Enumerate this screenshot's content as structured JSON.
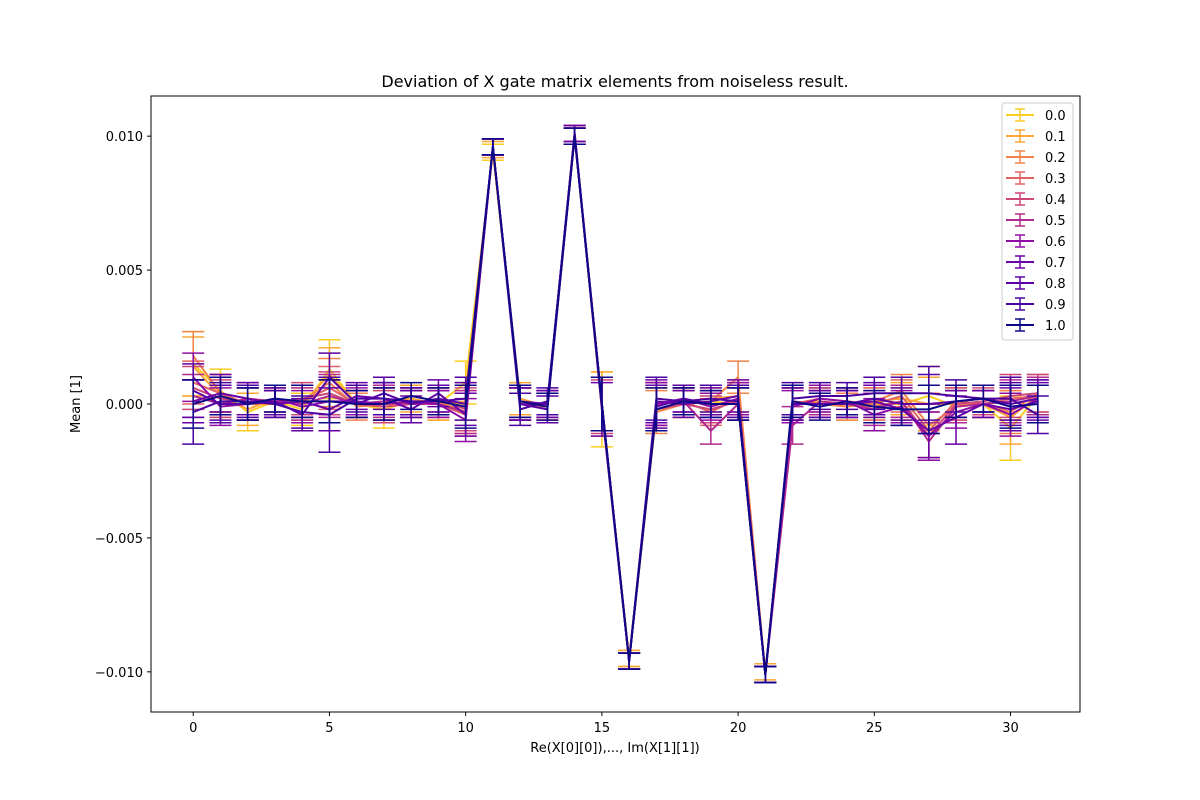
{
  "chart_data": {
    "type": "line",
    "title": "Deviation of X gate matrix elements from noiseless result.",
    "xlabel": "Re(X[0][0]),..., Im(X[1][1])",
    "ylabel": "Mean [1]",
    "xlim": [
      -1.55,
      32.55
    ],
    "ylim": [
      -0.0115,
      0.0115
    ],
    "xticks": [
      0,
      5,
      10,
      15,
      20,
      25,
      30
    ],
    "xtick_labels": [
      "0",
      "5",
      "10",
      "15",
      "20",
      "25",
      "30"
    ],
    "yticks": [
      -0.01,
      -0.005,
      0.0,
      0.005,
      0.01
    ],
    "ytick_labels": [
      "−0.010",
      "−0.005",
      "0.000",
      "0.005",
      "0.010"
    ],
    "grid": false,
    "legend_position": "top-right",
    "error_bars": true,
    "x": [
      0,
      1,
      2,
      3,
      4,
      5,
      6,
      7,
      8,
      9,
      10,
      11,
      12,
      13,
      14,
      15,
      16,
      17,
      18,
      19,
      20,
      21,
      22,
      23,
      24,
      25,
      26,
      27,
      28,
      29,
      30,
      31
    ],
    "series": [
      {
        "name": "0.0",
        "color": "#fcce25",
        "values": [
          0.0015,
          0.0005,
          -0.0003,
          0.0001,
          -0.0002,
          0.0013,
          0.0,
          -0.0002,
          0.0001,
          0.0,
          0.0008,
          0.0094,
          0.0001,
          -0.0001,
          0.0101,
          -0.0002,
          -0.0095,
          -0.0002,
          0.0,
          0.0001,
          0.0,
          -0.0101,
          0.0,
          0.0001,
          -0.0001,
          0.0,
          0.0,
          0.0003,
          -0.0001,
          0.0,
          -0.0009,
          0.0003
        ],
        "errors": [
          0.0012,
          0.0008,
          0.0007,
          0.0005,
          0.0006,
          0.0011,
          0.0004,
          0.0007,
          0.0005,
          0.0006,
          0.0008,
          0.0003,
          0.0006,
          0.0005,
          0.0003,
          0.0014,
          0.0003,
          0.0008,
          0.0005,
          0.0005,
          0.0006,
          0.0003,
          0.0006,
          0.0005,
          0.0005,
          0.0006,
          0.0006,
          0.0011,
          0.0006,
          0.0005,
          0.0012,
          0.0007
        ]
      },
      {
        "name": "0.1",
        "color": "#fca636",
        "values": [
          0.0014,
          0.0003,
          -0.0002,
          0.0002,
          0.0,
          0.0011,
          0.0,
          0.0001,
          0.0002,
          0.0,
          0.0001,
          0.0095,
          0.0002,
          -0.0001,
          0.01,
          0.0,
          -0.0095,
          0.0,
          0.0001,
          0.0002,
          0.0003,
          -0.01,
          0.0,
          0.0001,
          0.0,
          0.0001,
          0.0002,
          0.0,
          0.0,
          0.0,
          -0.0005,
          0.0003
        ],
        "errors": [
          0.0011,
          0.0008,
          0.0006,
          0.0005,
          0.0006,
          0.001,
          0.0005,
          0.0006,
          0.0005,
          0.0006,
          0.0007,
          0.0003,
          0.0006,
          0.0005,
          0.0003,
          0.0012,
          0.0003,
          0.0008,
          0.0005,
          0.0005,
          0.0006,
          0.0003,
          0.0006,
          0.0005,
          0.0005,
          0.0006,
          0.0006,
          0.001,
          0.0006,
          0.0005,
          0.001,
          0.0007
        ]
      },
      {
        "name": "0.2",
        "color": "#f2844b",
        "values": [
          0.0018,
          0.0004,
          0.0,
          0.0,
          0.0001,
          0.0008,
          -0.0001,
          0.0,
          0.0,
          0.0001,
          -0.0003,
          0.0096,
          0.0,
          -0.0001,
          0.01,
          0.0,
          -0.0096,
          -0.0003,
          0.0,
          0.0001,
          0.001,
          -0.0101,
          0.0,
          0.0,
          -0.0001,
          0.0001,
          0.0005,
          -0.0008,
          -0.0001,
          0.0,
          -0.0003,
          0.0004
        ],
        "errors": [
          0.0009,
          0.0007,
          0.0006,
          0.0005,
          0.0006,
          0.0009,
          0.0005,
          0.0006,
          0.0005,
          0.0005,
          0.0008,
          0.0003,
          0.0006,
          0.0005,
          0.0003,
          0.001,
          0.0003,
          0.0008,
          0.0005,
          0.0005,
          0.0006,
          0.0003,
          0.0006,
          0.0005,
          0.0005,
          0.0006,
          0.0006,
          0.0012,
          0.0006,
          0.0005,
          0.0008,
          0.0007
        ]
      },
      {
        "name": "0.3",
        "color": "#e16462",
        "values": [
          0.0008,
          0.0004,
          0.0,
          0.0001,
          0.0001,
          0.0006,
          0.0,
          0.0,
          0.0001,
          0.0,
          -0.0004,
          0.0096,
          0.0,
          -0.0001,
          0.01,
          0.0,
          -0.0096,
          0.0,
          0.0001,
          -0.0003,
          0.0002,
          -0.0101,
          0.0,
          0.0002,
          0.0001,
          0.0,
          0.0003,
          -0.001,
          0.0001,
          0.0,
          0.0002,
          0.0003
        ],
        "errors": [
          0.0008,
          0.0007,
          0.0006,
          0.0005,
          0.0006,
          0.0008,
          0.0005,
          0.0006,
          0.0005,
          0.0005,
          0.0008,
          0.0003,
          0.0006,
          0.0005,
          0.0003,
          0.001,
          0.0003,
          0.0008,
          0.0005,
          0.0005,
          0.0006,
          0.0003,
          0.0006,
          0.0005,
          0.0005,
          0.0006,
          0.0006,
          0.001,
          0.0006,
          0.0005,
          0.0008,
          0.0007
        ]
      },
      {
        "name": "0.4",
        "color": "#cc4778",
        "values": [
          0.0006,
          0.0002,
          0.0001,
          0.0,
          0.0002,
          0.0004,
          0.0,
          -0.0001,
          0.0,
          0.0002,
          -0.0002,
          0.0096,
          0.0,
          0.0,
          0.01,
          -0.0001,
          -0.0096,
          -0.0002,
          0.0,
          -0.0002,
          0.0001,
          -0.0101,
          0.0001,
          0.0,
          0.0,
          -0.0001,
          0.0001,
          -0.0012,
          0.0,
          0.0001,
          0.0003,
          0.0004
        ],
        "errors": [
          0.0008,
          0.0007,
          0.0006,
          0.0005,
          0.0006,
          0.0008,
          0.0005,
          0.0006,
          0.0005,
          0.0005,
          0.0008,
          0.0003,
          0.0006,
          0.0005,
          0.0003,
          0.001,
          0.0003,
          0.0008,
          0.0005,
          0.0005,
          0.0006,
          0.0003,
          0.0006,
          0.0005,
          0.0005,
          0.0006,
          0.0006,
          0.0009,
          0.0006,
          0.0005,
          0.0008,
          0.0007
        ]
      },
      {
        "name": "0.5",
        "color": "#b12a90",
        "values": [
          0.0003,
          0.0,
          0.0002,
          0.0001,
          0.0,
          0.0003,
          0.0,
          0.0001,
          0.0,
          0.0,
          -0.0003,
          0.0096,
          0.0,
          0.0,
          0.0101,
          0.0,
          -0.0096,
          0.0,
          0.0001,
          -0.001,
          0.0,
          -0.0101,
          -0.0008,
          0.0001,
          0.0,
          -0.0002,
          0.0001,
          -0.0014,
          -0.0001,
          0.0,
          0.0001,
          0.0003
        ],
        "errors": [
          0.0008,
          0.0007,
          0.0006,
          0.0005,
          0.0006,
          0.0008,
          0.0005,
          0.0006,
          0.0005,
          0.0005,
          0.0008,
          0.0003,
          0.0006,
          0.0005,
          0.0003,
          0.001,
          0.0003,
          0.0008,
          0.0005,
          0.0005,
          0.0006,
          0.0003,
          0.0007,
          0.0005,
          0.0005,
          0.0006,
          0.0006,
          0.0007,
          0.0006,
          0.0005,
          0.0008,
          0.0007
        ]
      },
      {
        "name": "0.6",
        "color": "#8f0da4",
        "values": [
          0.001,
          -0.0001,
          0.0,
          0.0002,
          -0.0001,
          0.0001,
          0.0001,
          0.0,
          0.0001,
          0.0,
          -0.0006,
          0.0096,
          0.0,
          0.0,
          0.0101,
          0.0,
          -0.0096,
          0.0,
          0.0002,
          -0.0001,
          0.0002,
          -0.0101,
          -0.0001,
          0.0002,
          0.0001,
          -0.0004,
          -0.0001,
          -0.0012,
          -0.0003,
          0.0,
          -0.0004,
          0.0002
        ],
        "errors": [
          0.0009,
          0.0007,
          0.0006,
          0.0005,
          0.0006,
          0.0008,
          0.0005,
          0.0006,
          0.0005,
          0.0005,
          0.0008,
          0.0003,
          0.0006,
          0.0005,
          0.0003,
          0.001,
          0.0003,
          0.0008,
          0.0005,
          0.0005,
          0.0006,
          0.0003,
          0.0006,
          0.0005,
          0.0005,
          0.0006,
          0.0006,
          0.0009,
          0.0006,
          0.0005,
          0.0008,
          0.0007
        ]
      },
      {
        "name": "0.7",
        "color": "#6a00a8",
        "values": [
          0.0001,
          0.0004,
          0.0002,
          0.0,
          0.0001,
          -0.0002,
          0.0003,
          0.0002,
          -0.0002,
          0.0004,
          -0.0004,
          0.0096,
          0.0001,
          0.0,
          0.0101,
          -0.0002,
          -0.0096,
          0.0001,
          0.0,
          0.0001,
          0.0003,
          -0.0101,
          0.0,
          0.0,
          0.0,
          0.0001,
          -0.0002,
          -0.001,
          -0.0005,
          0.0,
          -0.0002,
          0.0001
        ],
        "errors": [
          0.0008,
          0.0007,
          0.0006,
          0.0005,
          0.0006,
          0.0008,
          0.0005,
          0.0006,
          0.0005,
          0.0005,
          0.0008,
          0.0003,
          0.0006,
          0.0005,
          0.0003,
          0.001,
          0.0003,
          0.0008,
          0.0005,
          0.0005,
          0.0006,
          0.0003,
          0.0006,
          0.0005,
          0.0005,
          0.0006,
          0.0006,
          0.001,
          0.001,
          0.0005,
          0.0008,
          0.0007
        ]
      },
      {
        "name": "0.8",
        "color": "#5c01a6",
        "values": [
          0.0005,
          0.0,
          0.0,
          0.0001,
          -0.0004,
          0.001,
          0.0,
          0.0004,
          0.0,
          0.0002,
          0.0,
          0.0096,
          0.0,
          -0.0002,
          0.01,
          0.0,
          -0.0096,
          -0.0001,
          0.0002,
          0.0,
          0.0,
          -0.0101,
          0.0,
          0.0,
          0.0,
          0.0002,
          0.0,
          0.0,
          0.0001,
          0.0002,
          0.0,
          0.0002
        ],
        "errors": [
          0.001,
          0.0007,
          0.0006,
          0.0005,
          0.0006,
          0.0009,
          0.0005,
          0.0006,
          0.0005,
          0.0005,
          0.0008,
          0.0003,
          0.0006,
          0.0005,
          0.0003,
          0.001,
          0.0003,
          0.0008,
          0.0005,
          0.0005,
          0.0006,
          0.0003,
          0.0006,
          0.0005,
          0.0005,
          0.0006,
          0.0006,
          0.0011,
          0.0006,
          0.0005,
          0.0008,
          0.0007
        ]
      },
      {
        "name": "0.9",
        "color": "#4c02a1",
        "values": [
          -0.0003,
          0.0001,
          0.0001,
          0.0,
          -0.0003,
          -0.0004,
          0.0002,
          0.0002,
          0.0001,
          0.0001,
          0.0002,
          0.0096,
          -0.0002,
          0.0001,
          0.01,
          0.0,
          -0.0096,
          0.0002,
          0.0001,
          0.0002,
          0.0001,
          -0.0101,
          0.0002,
          0.0003,
          0.0003,
          0.0004,
          0.0004,
          0.0004,
          0.0003,
          0.0002,
          0.0002,
          -0.0004
        ],
        "errors": [
          0.0012,
          0.0007,
          0.0006,
          0.0005,
          0.0006,
          0.0014,
          0.0005,
          0.0006,
          0.0005,
          0.0005,
          0.0008,
          0.0003,
          0.0006,
          0.0005,
          0.0003,
          0.001,
          0.0003,
          0.0008,
          0.0005,
          0.0005,
          0.0006,
          0.0003,
          0.0006,
          0.0005,
          0.0005,
          0.0006,
          0.0006,
          0.001,
          0.0006,
          0.0005,
          0.0008,
          0.0007
        ]
      },
      {
        "name": "1.0",
        "color": "#0d0887",
        "values": [
          0.0,
          0.0003,
          0.0,
          0.0002,
          0.0001,
          0.0001,
          0.0,
          0.0,
          0.0003,
          0.0001,
          -0.0001,
          0.0096,
          0.0001,
          -0.0001,
          0.01,
          0.0,
          -0.0096,
          -0.0002,
          0.0001,
          0.0,
          0.0,
          -0.0101,
          0.0001,
          -0.0001,
          0.0001,
          -0.0001,
          -0.0002,
          -0.0002,
          0.0001,
          0.0002,
          -0.0001,
          0.0
        ],
        "errors": [
          0.0009,
          0.0007,
          0.0006,
          0.0005,
          0.0006,
          0.0008,
          0.0005,
          0.0006,
          0.0005,
          0.0005,
          0.0008,
          0.0003,
          0.0006,
          0.0005,
          0.0003,
          0.001,
          0.0003,
          0.0008,
          0.0005,
          0.0005,
          0.0006,
          0.0003,
          0.0006,
          0.0005,
          0.0005,
          0.0006,
          0.0006,
          0.0009,
          0.0006,
          0.0005,
          0.0008,
          0.0007
        ]
      }
    ]
  }
}
